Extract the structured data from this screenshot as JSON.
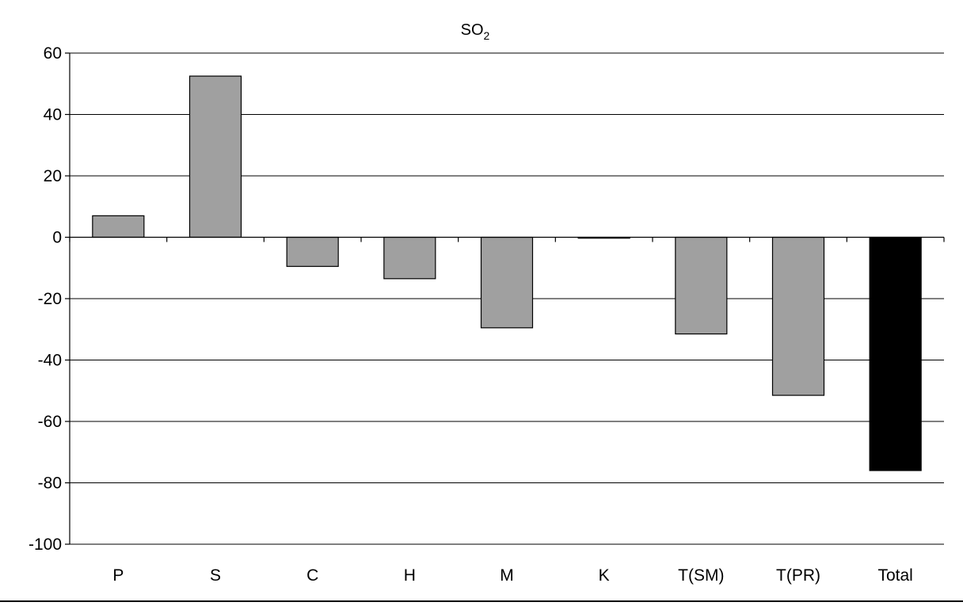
{
  "chart_data": {
    "type": "bar",
    "title": "SO2",
    "title_main": "SO",
    "title_subscript": "2",
    "xlabel": "",
    "ylabel": "",
    "categories": [
      "P",
      "S",
      "C",
      "H",
      "M",
      "K",
      "T(SM)",
      "T(PR)",
      "Total"
    ],
    "values": [
      7,
      52.5,
      -9.5,
      -13.5,
      -29.5,
      -0.3,
      -31.5,
      -51.5,
      -76
    ],
    "bar_colors": [
      "#a0a0a0",
      "#a0a0a0",
      "#a0a0a0",
      "#a0a0a0",
      "#a0a0a0",
      "#a0a0a0",
      "#a0a0a0",
      "#a0a0a0",
      "#000000"
    ],
    "ylim": [
      -100,
      60
    ],
    "yticks": [
      60,
      40,
      20,
      0,
      -20,
      -40,
      -60,
      -80,
      -100
    ],
    "ytick_labels": [
      "60",
      "40",
      "20",
      "0",
      "-20",
      "-40",
      "-60",
      "-80",
      "-100"
    ],
    "grid": true,
    "legend": "none"
  }
}
